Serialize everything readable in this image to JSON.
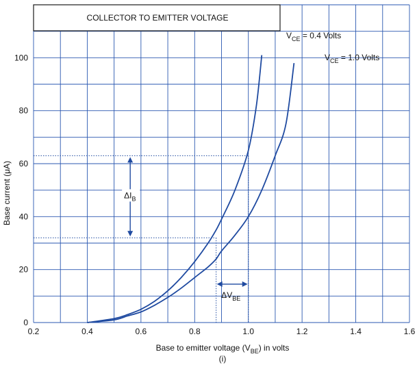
{
  "chart_data": {
    "type": "line",
    "title": "COLLECTOR TO EMITTER VOLTAGE",
    "xlabel": {
      "prefix": "Base to emitter voltage (V",
      "sub": "BE",
      "suffix": ") in volts"
    },
    "ylabel": "Base current (μA)",
    "caption": "(i)",
    "xlim": [
      0.2,
      1.6
    ],
    "ylim": [
      0,
      120
    ],
    "x_ticks": [
      0.2,
      0.4,
      0.6,
      0.8,
      1.0,
      1.2,
      1.4,
      1.6
    ],
    "x_tick_labels": [
      "0.2",
      "0.4",
      "0.6",
      "0.8",
      "1.0",
      "1.2",
      "1.4",
      "1.6"
    ],
    "y_ticks": [
      0,
      20,
      40,
      60,
      80,
      100
    ],
    "y_tick_labels": [
      "0",
      "20",
      "40",
      "60",
      "80",
      "100"
    ],
    "grid": true,
    "series": [
      {
        "label_prefix": "V",
        "label_sub": "CE",
        "label_suffix": " = 0.4 Volts",
        "x": [
          0.4,
          0.5,
          0.55,
          0.6,
          0.65,
          0.7,
          0.75,
          0.8,
          0.85,
          0.88,
          0.9,
          0.95,
          1.0,
          1.03,
          1.05
        ],
        "y": [
          0,
          1.5,
          3,
          5,
          8,
          12,
          17,
          23,
          30,
          35,
          39,
          50,
          65,
          82,
          101
        ]
      },
      {
        "label_prefix": "V",
        "label_sub": "CE",
        "label_suffix": " = 1.0 Volts",
        "x": [
          0.4,
          0.5,
          0.55,
          0.6,
          0.65,
          0.7,
          0.75,
          0.8,
          0.85,
          0.88,
          0.9,
          0.95,
          1.0,
          1.05,
          1.1,
          1.14,
          1.17
        ],
        "y": [
          0,
          1,
          2.5,
          4,
          6.5,
          9.5,
          13,
          17,
          21,
          24,
          27,
          33,
          40,
          50,
          63,
          75,
          98
        ]
      }
    ],
    "annotations": {
      "delta_ib": {
        "prefix": "ΔI",
        "sub": "B",
        "y_top": 63,
        "y_bottom": 32,
        "x_arrow": 0.56
      },
      "delta_vbe": {
        "prefix": "ΔV",
        "sub": "BE",
        "x_left": 0.88,
        "x_right": 1.0,
        "y": 14.5
      }
    }
  }
}
